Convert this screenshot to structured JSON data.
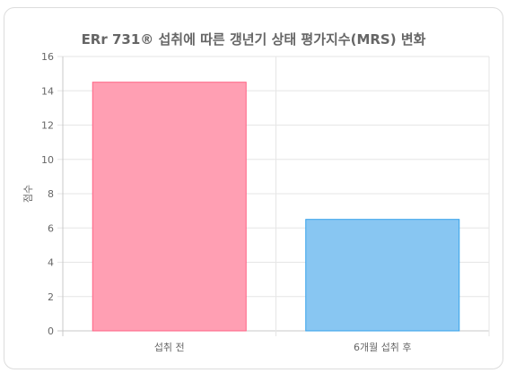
{
  "chart_data": {
    "type": "bar",
    "title": "ERr 731® 섭취에 따른 갱년기 상태 평가지수(MRS) 변화",
    "xlabel": "",
    "ylabel": "점수",
    "categories": [
      "섭취 전",
      "6개월 섭취 후"
    ],
    "series": [
      {
        "values": [
          14.5,
          6.5
        ]
      }
    ],
    "colors": {
      "fills": [
        "#ff9fb3",
        "#88c6f2"
      ],
      "strokes": [
        "#ff6384",
        "#36a2eb"
      ]
    },
    "ylim": [
      0,
      16
    ],
    "yticks": [
      0,
      2,
      4,
      6,
      8,
      10,
      12,
      14,
      16
    ],
    "grid": true,
    "legend": "none"
  }
}
